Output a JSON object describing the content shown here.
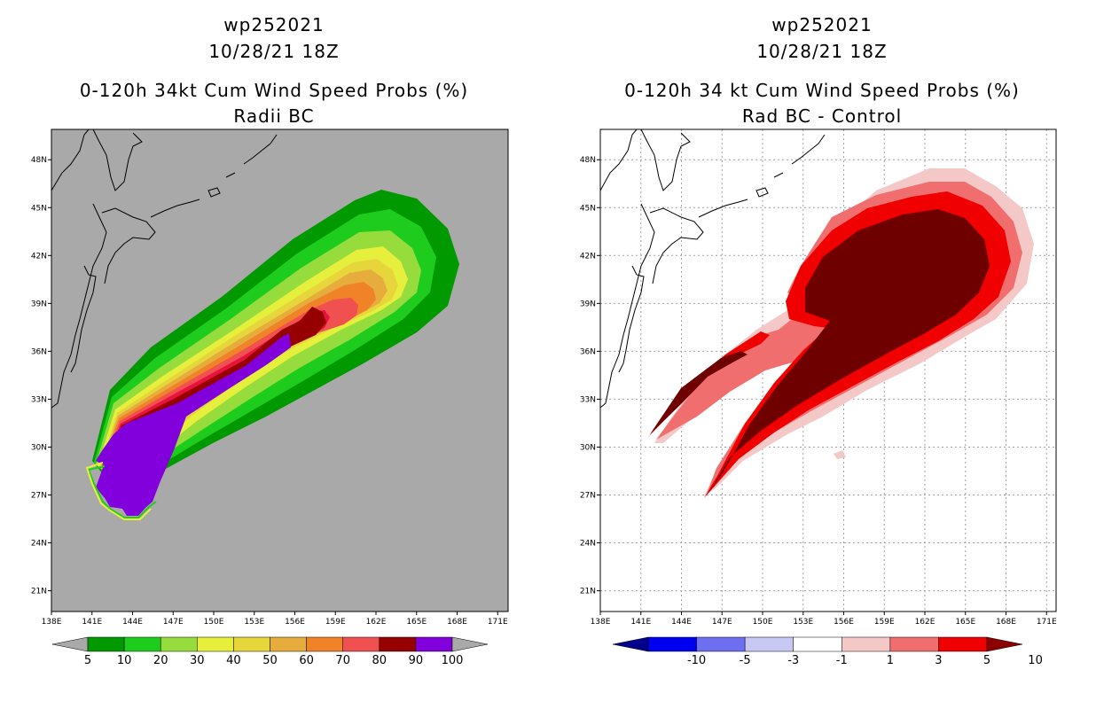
{
  "left_panel": {
    "storm_id": "wp252021",
    "datetime": "10/28/21 18Z",
    "title": "0-120h 34kt Cum Wind Speed Probs (%)",
    "subtitle": "Radii BC",
    "colorbar": {
      "labels": [
        "5",
        "10",
        "20",
        "30",
        "40",
        "50",
        "60",
        "70",
        "80",
        "90",
        "100"
      ],
      "colors": [
        "#009900",
        "#1ecc1e",
        "#96dc3c",
        "#e6f03c",
        "#e6d63c",
        "#e6ad3c",
        "#f08228",
        "#f05050",
        "#960000",
        "#8200dc"
      ]
    }
  },
  "right_panel": {
    "storm_id": "wp252021",
    "datetime": "10/28/21 18Z",
    "title": "0-120h 34 kt Cum Wind Speed Probs (%)",
    "subtitle": "Rad BC - Control",
    "colorbar": {
      "labels": [
        "-10",
        "-5",
        "-3",
        "-1",
        "1",
        "3",
        "5",
        "10"
      ],
      "colors": [
        "#00008c",
        "#0000f0",
        "#6e6ef0",
        "#c8c8f5",
        "#ffffff",
        "#f5c8c8",
        "#f06e6e",
        "#f00000",
        "#8c0000"
      ]
    }
  },
  "axes": {
    "x_ticks": [
      "138E",
      "141E",
      "144E",
      "147E",
      "150E",
      "153E",
      "156E",
      "159E",
      "162E",
      "165E",
      "168E",
      "171E"
    ],
    "y_ticks": [
      "48N",
      "45N",
      "42N",
      "39N",
      "36N",
      "33N",
      "30N",
      "27N",
      "24N",
      "21N"
    ]
  },
  "chart_data": [
    {
      "type": "heatmap",
      "title": "0-120h 34kt Cum Wind Speed Probs (%)",
      "subtitle": "Radii BC",
      "region": {
        "lon": [
          138,
          173
        ],
        "lat": [
          19.7,
          49.9
        ]
      },
      "levels": [
        5,
        10,
        20,
        30,
        40,
        50,
        60,
        70,
        80,
        90,
        100
      ]
    },
    {
      "type": "heatmap",
      "title": "0-120h 34 kt Cum Wind Speed Probs (%)",
      "subtitle": "Rad BC - Control",
      "region": {
        "lon": [
          138,
          173
        ],
        "lat": [
          19.7,
          49.9
        ]
      },
      "levels": [
        -10,
        -5,
        -3,
        -1,
        1,
        3,
        5,
        10
      ]
    }
  ]
}
